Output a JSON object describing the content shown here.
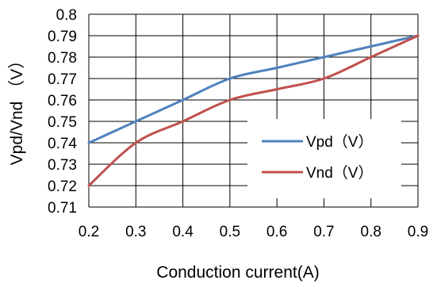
{
  "chart_data": {
    "type": "line",
    "x": [
      0.2,
      0.3,
      0.4,
      0.5,
      0.6,
      0.7,
      0.8,
      0.9
    ],
    "x_tick_labels": [
      "0.2",
      "0.3",
      "0.4",
      "0.5",
      "0.6",
      "0.7",
      "0.8",
      "0.9"
    ],
    "y_tick_labels": [
      "0.71",
      "0.72",
      "0.73",
      "0.74",
      "0.75",
      "0.76",
      "0.77",
      "0.78",
      "0.79",
      "0.8"
    ],
    "xlim": [
      0.2,
      0.9
    ],
    "ylim": [
      0.71,
      0.8
    ],
    "xlabel": "Conduction current(A)",
    "ylabel": "Vpd/Vnd （V）",
    "grid": true,
    "legend_position": "bottom-right",
    "series": [
      {
        "name": "Vpd（V）",
        "color": "#4f81bd",
        "values": [
          0.74,
          0.75,
          0.76,
          0.77,
          0.775,
          0.78,
          0.785,
          0.79
        ]
      },
      {
        "name": "Vnd（V）",
        "color": "#c0504d",
        "values": [
          0.72,
          0.74,
          0.75,
          0.76,
          0.765,
          0.77,
          0.78,
          0.79
        ]
      }
    ]
  }
}
